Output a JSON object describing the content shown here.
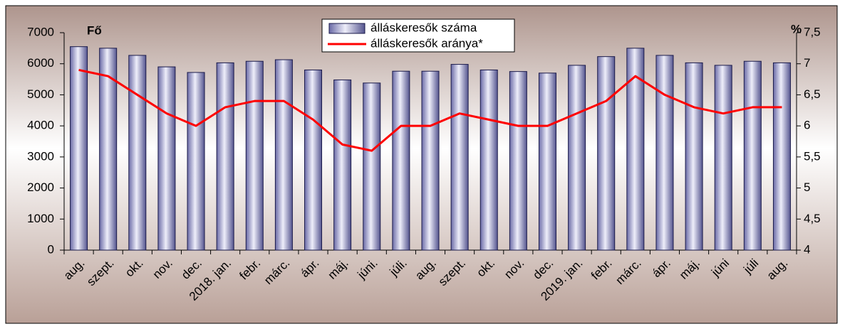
{
  "chart_data": {
    "type": "bar",
    "ylabel": "Fő",
    "y2label": "%",
    "categories": [
      "aug.",
      "szept.",
      "okt.",
      "nov.",
      "dec.",
      "2018. jan.",
      "febr.",
      "márc.",
      "ápr.",
      "máj.",
      "júni.",
      "júli.",
      "aug.",
      "szept.",
      "okt.",
      "nov.",
      "dec.",
      "2019. jan.",
      "febr.",
      "márc.",
      "ápr.",
      "máj.",
      "júni",
      "júli",
      "aug."
    ],
    "series": [
      {
        "name": "álláskeresők száma",
        "type": "bar",
        "color": "#7070b0",
        "values": [
          6550,
          6500,
          6270,
          5900,
          5720,
          6030,
          6080,
          6130,
          5800,
          5480,
          5380,
          5760,
          5760,
          5980,
          5800,
          5750,
          5700,
          5950,
          6230,
          6500,
          6270,
          6030,
          5950,
          6080,
          6030
        ]
      },
      {
        "name": "álláskeresők aránya*",
        "type": "line",
        "axis": "y2",
        "color": "#ff0000",
        "values": [
          6.9,
          6.8,
          6.5,
          6.2,
          6.0,
          6.3,
          6.4,
          6.4,
          6.1,
          5.7,
          5.6,
          6.0,
          6.0,
          6.2,
          6.1,
          6.0,
          6.0,
          6.2,
          6.4,
          6.8,
          6.5,
          6.3,
          6.2,
          6.3,
          6.3
        ]
      }
    ],
    "ylim": [
      0,
      7000
    ],
    "yticks": [
      0,
      1000,
      2000,
      3000,
      4000,
      5000,
      6000,
      7000
    ],
    "y2lim": [
      4,
      7.5
    ],
    "y2ticks": [
      4,
      {
        "value": 4.5,
        "label": "4,5"
      },
      5,
      {
        "value": 5.5,
        "label": "5,5"
      },
      6,
      {
        "value": 6.5,
        "label": "6,5"
      },
      7,
      {
        "value": 7.5,
        "label": "7,5"
      }
    ]
  }
}
